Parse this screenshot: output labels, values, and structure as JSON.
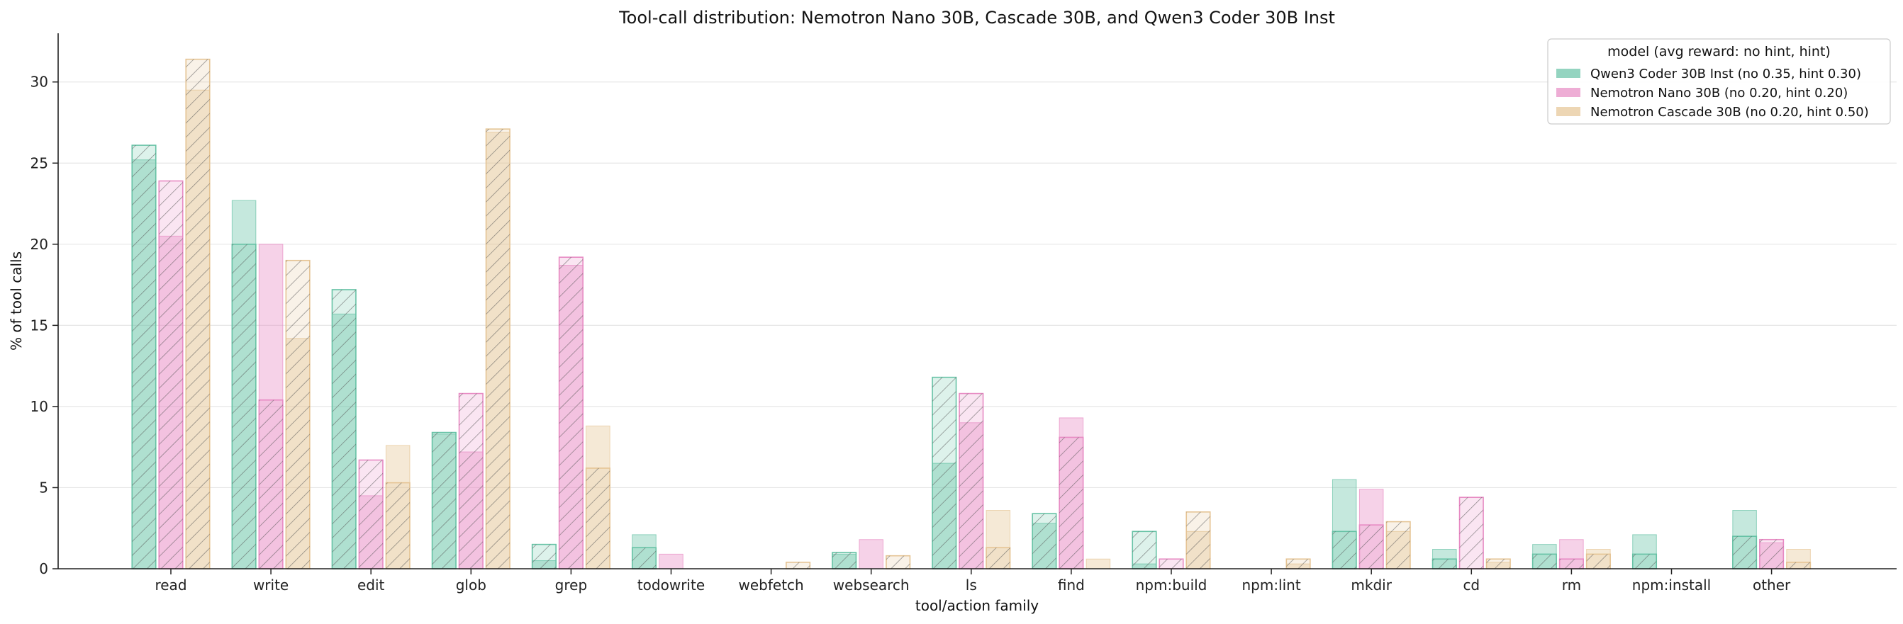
{
  "chart_data": {
    "type": "bar",
    "title": "Tool-call distribution: Nemotron Nano 30B, Cascade 30B, and Qwen3 Coder 30B Inst",
    "xlabel": "tool/action family",
    "ylabel": "% of tool calls",
    "ylim": [
      0,
      33
    ],
    "yticks": [
      0,
      5,
      10,
      15,
      20,
      25,
      30
    ],
    "grid": "horizontal",
    "categories": [
      "read",
      "write",
      "edit",
      "glob",
      "grep",
      "todowrite",
      "webfetch",
      "websearch",
      "ls",
      "find",
      "npm:build",
      "npm:lint",
      "mkdir",
      "cd",
      "rm",
      "npm:install",
      "other"
    ],
    "legend": {
      "title": "model (avg reward: no hint, hint)",
      "placement": "top-right"
    },
    "conditions": [
      "no hint (solid)",
      "hint (hatched)"
    ],
    "series": [
      {
        "name": "Qwen3 Coder 30B Inst (no 0.35, hint 0.30)",
        "color": "#66c2a5",
        "no_hint": [
          25.2,
          22.7,
          15.7,
          8.3,
          0.5,
          2.1,
          0.0,
          0.9,
          6.5,
          2.8,
          0.3,
          0.0,
          5.5,
          1.2,
          1.5,
          2.1,
          3.6
        ],
        "hint": [
          26.1,
          20.0,
          17.2,
          8.4,
          1.5,
          1.3,
          0.0,
          1.0,
          11.8,
          3.4,
          2.3,
          0.0,
          2.3,
          0.6,
          0.9,
          0.9,
          2.0
        ]
      },
      {
        "name": "Nemotron Nano 30B (no 0.20, hint 0.20)",
        "color": "#e78ac3",
        "no_hint": [
          20.5,
          20.0,
          4.5,
          7.2,
          18.7,
          0.9,
          0.0,
          1.8,
          9.0,
          9.3,
          0.0,
          0.0,
          4.9,
          0.0,
          1.8,
          0.0,
          1.6
        ],
        "hint": [
          23.9,
          10.4,
          6.7,
          10.8,
          19.2,
          0.0,
          0.0,
          0.0,
          10.8,
          8.1,
          0.6,
          0.0,
          2.7,
          4.4,
          0.6,
          0.0,
          1.8
        ]
      },
      {
        "name": "Nemotron Cascade 30B (no 0.20, hint 0.50)",
        "color": "#e5c494",
        "no_hint": [
          29.5,
          14.2,
          7.6,
          26.9,
          8.8,
          0.0,
          0.0,
          0.0,
          3.6,
          0.6,
          2.3,
          0.3,
          2.3,
          0.4,
          1.2,
          0.0,
          1.2
        ],
        "hint": [
          31.4,
          19.0,
          5.3,
          27.1,
          6.2,
          0.0,
          0.4,
          0.8,
          1.3,
          0.0,
          3.5,
          0.6,
          2.9,
          0.6,
          0.9,
          0.0,
          0.4
        ]
      }
    ]
  }
}
